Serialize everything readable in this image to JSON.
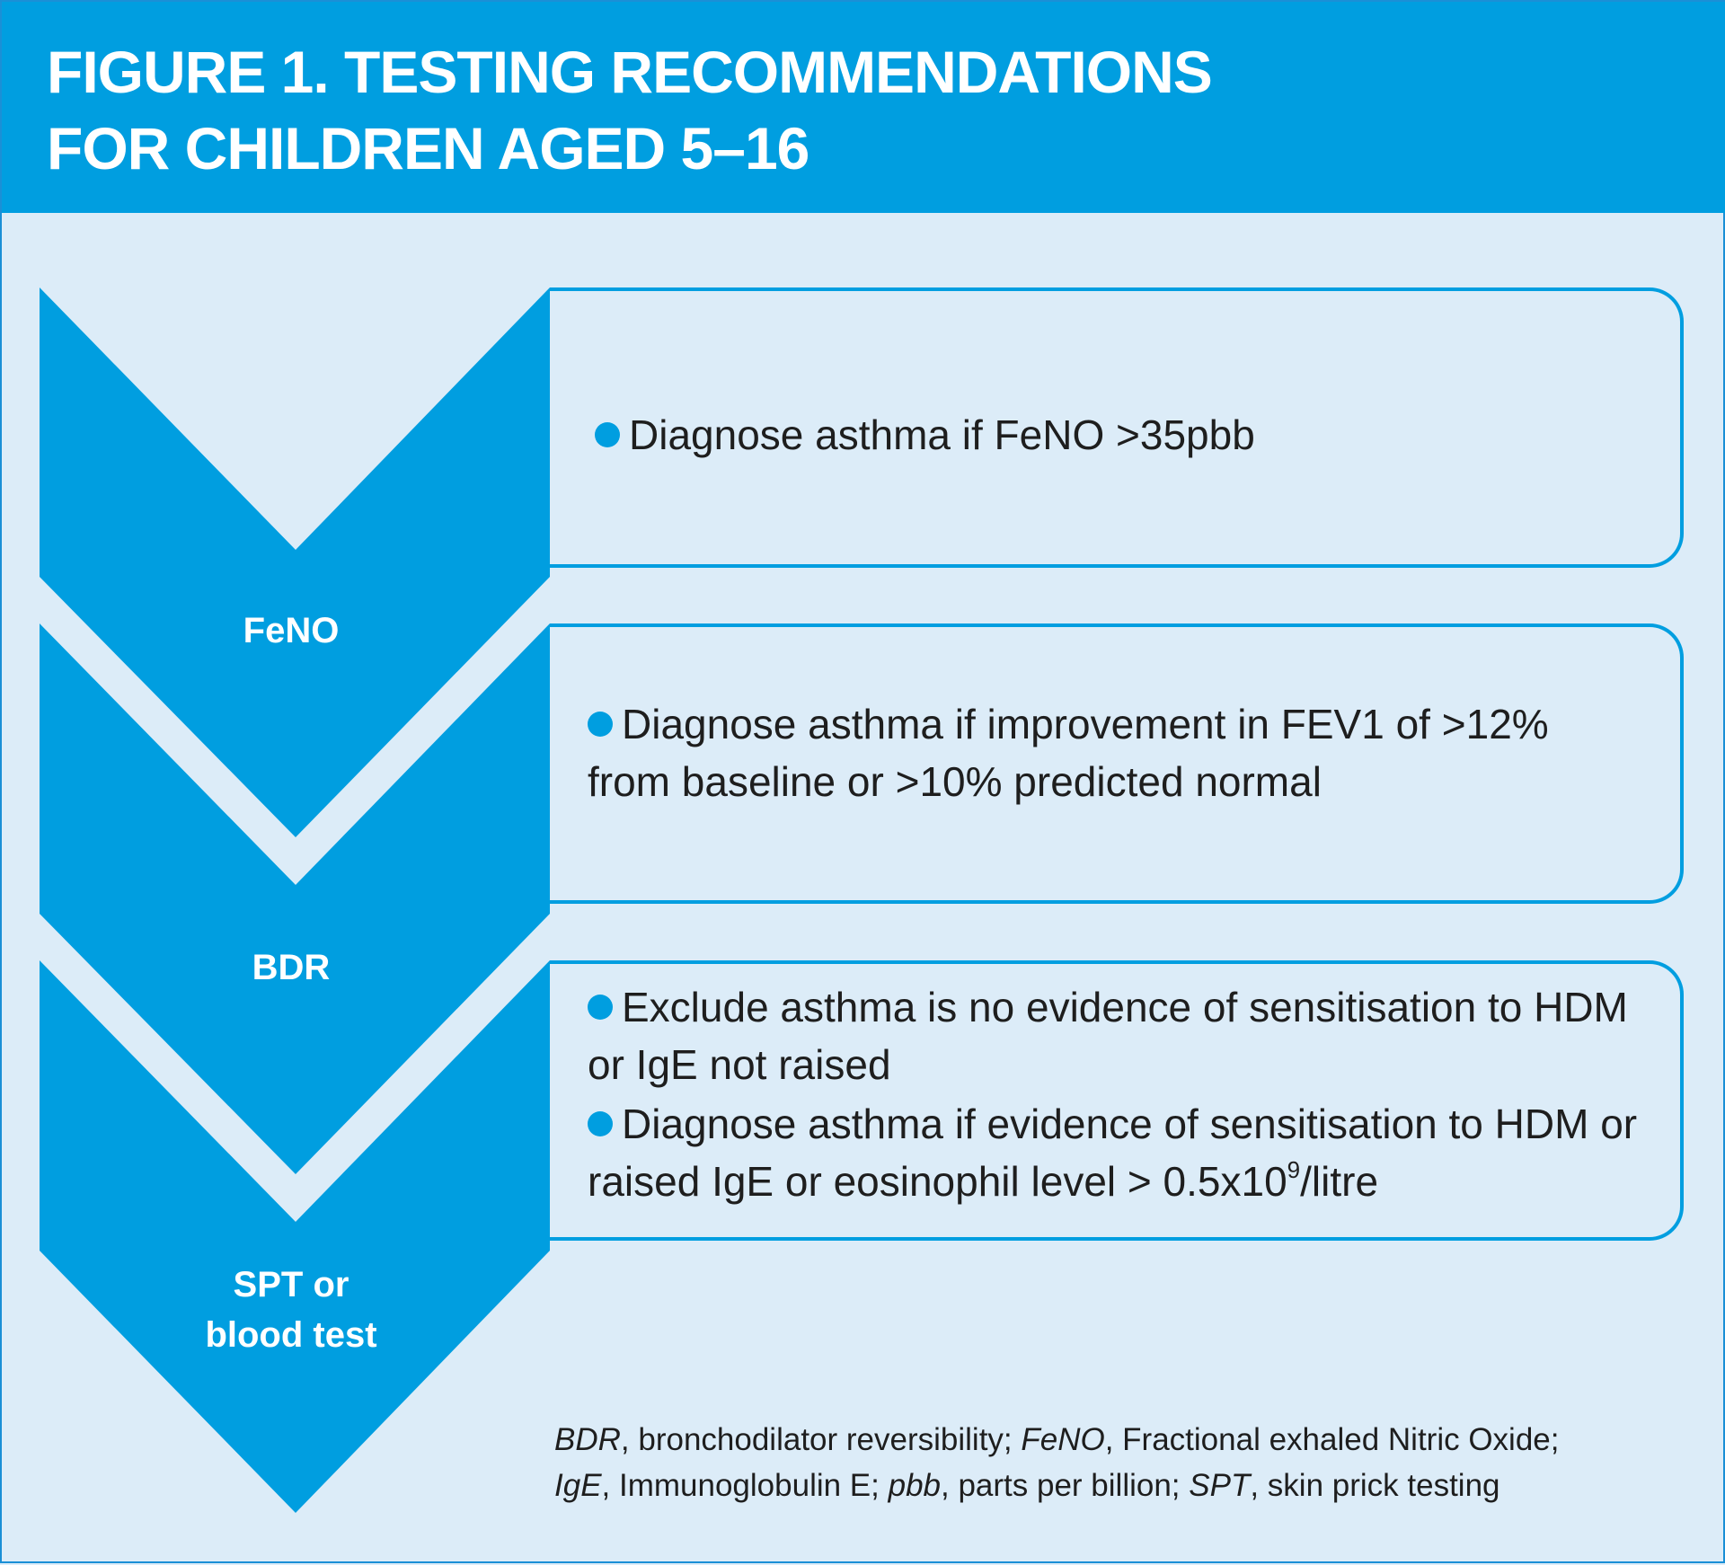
{
  "title": {
    "line1": "FIGURE 1. TESTING RECOMMENDATIONS",
    "line2": "FOR CHILDREN AGED 5–16"
  },
  "steps": [
    {
      "label": "FeNO",
      "bullets": [
        "Diagnose asthma if FeNO >35pbb"
      ]
    },
    {
      "label": "BDR",
      "bullets": [
        "Diagnose asthma if improvement in FEV1 of >12% from baseline or >10% predicted normal"
      ]
    },
    {
      "label_line1": "SPT or",
      "label_line2": "blood test",
      "bullet1": "Exclude asthma is no evidence of sensitisation to HDM or IgE not raised",
      "bullet2_pre": "Diagnose asthma if evidence of sensitisation to HDM or raised IgE or eosinophil level > 0.5x10",
      "bullet2_sup": "9",
      "bullet2_post": "/litre"
    }
  ],
  "footnote": {
    "bdr_abbr": "BDR",
    "bdr_def": ", bronchodilator reversibility; ",
    "feno_abbr": "FeNO",
    "feno_def": ", Fractional exhaled Nitric Oxide;",
    "ige_abbr": "IgE",
    "ige_def": ", Immunoglobulin E; ",
    "pbb_abbr": "pbb",
    "pbb_def": ", parts per billion; ",
    "spt_abbr": "SPT",
    "spt_def": ", skin prick testing"
  },
  "colors": {
    "header": "#009ee0",
    "chevron": "#009ee0",
    "background": "#dcecf8",
    "text": "#1e1e1e"
  }
}
